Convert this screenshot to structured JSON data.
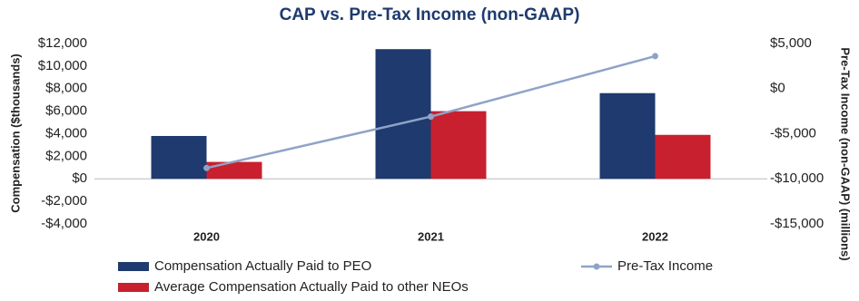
{
  "chart_data": {
    "type": "bar-line",
    "title": "CAP  vs. Pre-Tax Income (non-GAAP)",
    "y_label": "Compensation ($thousands)",
    "y2_label": "Pre-Tax Income (non-GAAP) (millions)",
    "categories": [
      "2020",
      "2021",
      "2022"
    ],
    "series": [
      {
        "name": "Compensation Actually Paid to PEO",
        "color": "#1e3a6e",
        "kind": "bar",
        "values": [
          3800,
          11500,
          7600
        ]
      },
      {
        "name": "Average Compensation Actually Paid to other NEOs",
        "color": "#c8202f",
        "kind": "bar",
        "values": [
          1500,
          6000,
          3900
        ]
      },
      {
        "name": "Pre-Tax Income",
        "color": "#8fa3c8",
        "kind": "line",
        "axis": "y2",
        "values": [
          -8800,
          -3100,
          3600
        ]
      }
    ],
    "ylim": [
      -4000,
      12000
    ],
    "yticks": [
      {
        "value": -4000,
        "label": "-$4,000"
      },
      {
        "value": -2000,
        "label": "-$2,000"
      },
      {
        "value": 0,
        "label": "$0"
      },
      {
        "value": 2000,
        "label": "$2,000"
      },
      {
        "value": 4000,
        "label": "$4,000"
      },
      {
        "value": 6000,
        "label": "$6,000"
      },
      {
        "value": 8000,
        "label": "$8,000"
      },
      {
        "value": 10000,
        "label": "$10,000"
      },
      {
        "value": 12000,
        "label": "$12,000"
      }
    ],
    "y2lim": [
      -15000,
      5000
    ],
    "y2ticks": [
      {
        "value": -15000,
        "label": "-$15,000"
      },
      {
        "value": -10000,
        "label": "-$10,000"
      },
      {
        "value": -5000,
        "label": "-$5,000"
      },
      {
        "value": 0,
        "label": "$0"
      },
      {
        "value": 5000,
        "label": "$5,000"
      }
    ]
  }
}
